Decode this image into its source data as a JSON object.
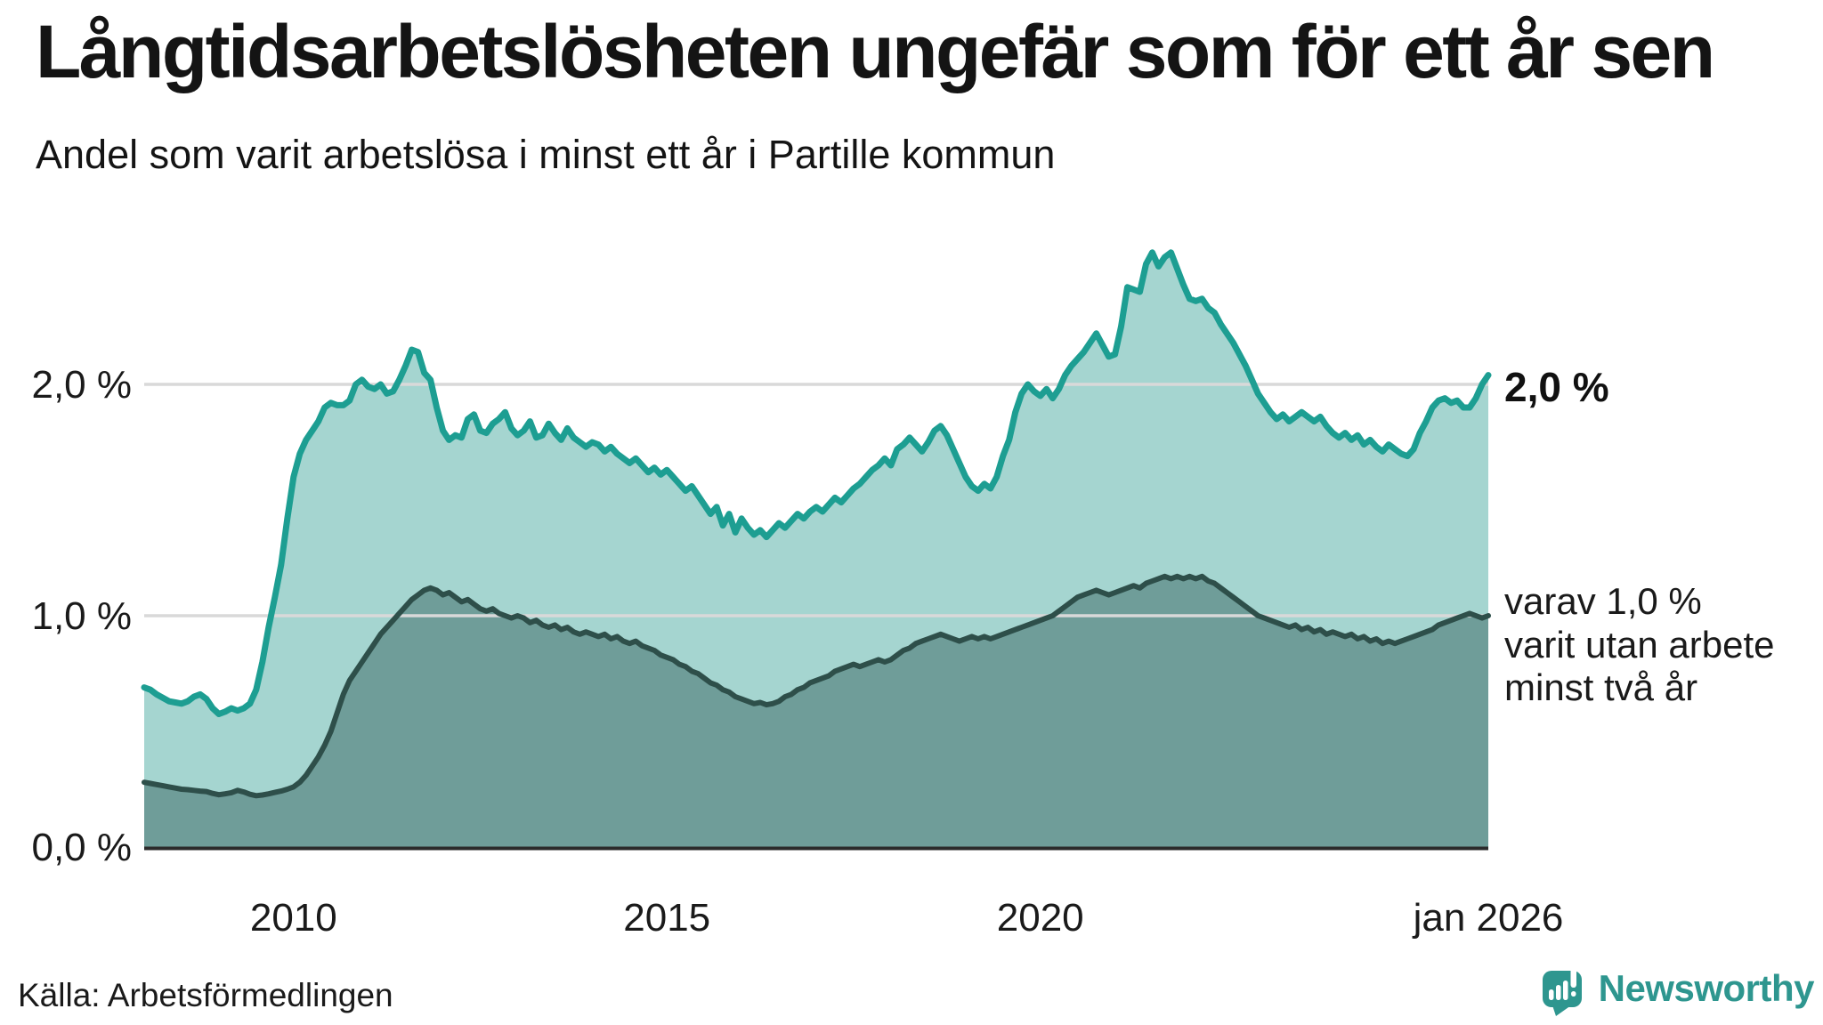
{
  "header": {
    "title": "Långtidsarbetslösheten ungefär som för ett år sen",
    "subtitle": "Andel som varit arbetslösa i minst ett år i Partille kommun"
  },
  "chart_data": {
    "type": "area",
    "unit": "%",
    "x_start_year": 2008,
    "x_end_year": 2026,
    "points_per_month": 1,
    "ylim": [
      0,
      2.77
    ],
    "grid": true,
    "legend_position": "right-edge-annotations",
    "y_ticks": [
      {
        "value": 2.0,
        "label": "2,0 %"
      },
      {
        "value": 1.0,
        "label": "1,0 %"
      },
      {
        "value": 0.0,
        "label": "0,0 %"
      }
    ],
    "x_ticks": [
      {
        "year": 2010,
        "label": "2010"
      },
      {
        "year": 2015,
        "label": "2015"
      },
      {
        "year": 2020,
        "label": "2020"
      },
      {
        "year": 2026,
        "label": "jan 2026"
      }
    ],
    "series": [
      {
        "name": "Andel arbetslösa minst ett år",
        "line_color": "#1d9e92",
        "fill_color": "#a5d5d0",
        "values": [
          0.69,
          0.68,
          0.66,
          0.645,
          0.63,
          0.625,
          0.62,
          0.63,
          0.65,
          0.66,
          0.64,
          0.6,
          0.575,
          0.585,
          0.6,
          0.59,
          0.6,
          0.62,
          0.68,
          0.8,
          0.95,
          1.08,
          1.22,
          1.42,
          1.6,
          1.7,
          1.76,
          1.8,
          1.84,
          1.9,
          1.92,
          1.91,
          1.91,
          1.93,
          2.0,
          2.02,
          1.99,
          1.98,
          2.0,
          1.96,
          1.97,
          2.02,
          2.08,
          2.15,
          2.14,
          2.05,
          2.02,
          1.9,
          1.8,
          1.76,
          1.78,
          1.77,
          1.85,
          1.87,
          1.8,
          1.79,
          1.83,
          1.85,
          1.88,
          1.81,
          1.78,
          1.8,
          1.84,
          1.77,
          1.78,
          1.83,
          1.79,
          1.76,
          1.81,
          1.77,
          1.75,
          1.73,
          1.75,
          1.74,
          1.71,
          1.73,
          1.7,
          1.68,
          1.66,
          1.68,
          1.65,
          1.62,
          1.64,
          1.61,
          1.63,
          1.6,
          1.57,
          1.54,
          1.56,
          1.52,
          1.48,
          1.44,
          1.47,
          1.39,
          1.44,
          1.36,
          1.42,
          1.38,
          1.35,
          1.37,
          1.34,
          1.37,
          1.4,
          1.38,
          1.41,
          1.44,
          1.42,
          1.45,
          1.47,
          1.45,
          1.48,
          1.51,
          1.49,
          1.52,
          1.55,
          1.57,
          1.6,
          1.63,
          1.65,
          1.68,
          1.65,
          1.72,
          1.74,
          1.77,
          1.74,
          1.71,
          1.75,
          1.8,
          1.82,
          1.78,
          1.72,
          1.66,
          1.6,
          1.56,
          1.54,
          1.57,
          1.55,
          1.6,
          1.69,
          1.76,
          1.88,
          1.96,
          2.0,
          1.97,
          1.95,
          1.98,
          1.94,
          1.98,
          2.04,
          2.08,
          2.11,
          2.14,
          2.18,
          2.22,
          2.17,
          2.12,
          2.13,
          2.25,
          2.42,
          2.41,
          2.4,
          2.52,
          2.57,
          2.51,
          2.55,
          2.57,
          2.5,
          2.43,
          2.37,
          2.36,
          2.37,
          2.33,
          2.31,
          2.26,
          2.22,
          2.18,
          2.13,
          2.08,
          2.02,
          1.96,
          1.92,
          1.88,
          1.85,
          1.87,
          1.84,
          1.86,
          1.88,
          1.86,
          1.84,
          1.86,
          1.82,
          1.79,
          1.77,
          1.79,
          1.76,
          1.78,
          1.74,
          1.76,
          1.73,
          1.71,
          1.74,
          1.72,
          1.7,
          1.69,
          1.72,
          1.79,
          1.84,
          1.9,
          1.93,
          1.94,
          1.92,
          1.93,
          1.9,
          1.9,
          1.94,
          2.0,
          2.04
        ]
      },
      {
        "name": "Varav utan arbete minst två år",
        "line_color": "#2e4f4a",
        "fill_color": "#6f9d99",
        "values": [
          0.28,
          0.275,
          0.27,
          0.265,
          0.26,
          0.255,
          0.25,
          0.248,
          0.245,
          0.242,
          0.24,
          0.232,
          0.226,
          0.23,
          0.235,
          0.245,
          0.238,
          0.228,
          0.222,
          0.225,
          0.23,
          0.236,
          0.242,
          0.25,
          0.26,
          0.28,
          0.31,
          0.35,
          0.39,
          0.44,
          0.5,
          0.58,
          0.66,
          0.72,
          0.76,
          0.8,
          0.84,
          0.88,
          0.92,
          0.95,
          0.98,
          1.01,
          1.04,
          1.07,
          1.09,
          1.11,
          1.12,
          1.11,
          1.09,
          1.1,
          1.08,
          1.06,
          1.07,
          1.05,
          1.03,
          1.02,
          1.03,
          1.01,
          1.0,
          0.99,
          1.0,
          0.99,
          0.97,
          0.98,
          0.96,
          0.95,
          0.96,
          0.94,
          0.95,
          0.93,
          0.92,
          0.93,
          0.92,
          0.91,
          0.92,
          0.9,
          0.91,
          0.89,
          0.88,
          0.89,
          0.87,
          0.86,
          0.85,
          0.83,
          0.82,
          0.81,
          0.79,
          0.78,
          0.76,
          0.75,
          0.73,
          0.71,
          0.7,
          0.68,
          0.67,
          0.65,
          0.64,
          0.63,
          0.62,
          0.625,
          0.615,
          0.62,
          0.63,
          0.65,
          0.66,
          0.68,
          0.69,
          0.71,
          0.72,
          0.73,
          0.74,
          0.76,
          0.77,
          0.78,
          0.79,
          0.78,
          0.79,
          0.8,
          0.81,
          0.8,
          0.81,
          0.83,
          0.85,
          0.86,
          0.88,
          0.89,
          0.9,
          0.91,
          0.92,
          0.91,
          0.9,
          0.89,
          0.9,
          0.91,
          0.9,
          0.91,
          0.9,
          0.91,
          0.92,
          0.93,
          0.94,
          0.95,
          0.96,
          0.97,
          0.98,
          0.99,
          1.0,
          1.02,
          1.04,
          1.06,
          1.08,
          1.09,
          1.1,
          1.11,
          1.1,
          1.09,
          1.1,
          1.11,
          1.12,
          1.13,
          1.12,
          1.14,
          1.15,
          1.16,
          1.17,
          1.16,
          1.17,
          1.16,
          1.17,
          1.16,
          1.17,
          1.15,
          1.14,
          1.12,
          1.1,
          1.08,
          1.06,
          1.04,
          1.02,
          1.0,
          0.99,
          0.98,
          0.97,
          0.96,
          0.95,
          0.96,
          0.94,
          0.95,
          0.93,
          0.94,
          0.92,
          0.93,
          0.92,
          0.91,
          0.92,
          0.9,
          0.91,
          0.89,
          0.9,
          0.88,
          0.89,
          0.88,
          0.89,
          0.9,
          0.91,
          0.92,
          0.93,
          0.94,
          0.96,
          0.97,
          0.98,
          0.99,
          1.0,
          1.01,
          1.0,
          0.99,
          1.0
        ]
      }
    ],
    "end_labels": {
      "total": "2,0 %",
      "two_years": [
        "varav 1,0 %",
        "varit utan arbete",
        "minst två år"
      ]
    },
    "colors": {
      "gridline": "#d9d9d9",
      "axis": "#2b2b2b",
      "text": "#1a1a1a"
    }
  },
  "footer": {
    "source": "Källa: Arbetsförmedlingen",
    "brand": "Newsworthy",
    "brand_color": "#2e968f"
  }
}
